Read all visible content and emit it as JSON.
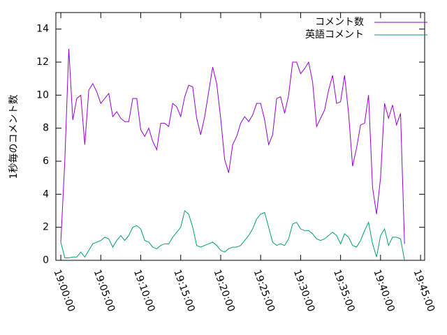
{
  "chart_data": {
    "type": "line",
    "ylabel": "1秒毎のコメント数",
    "xlim": [
      "18:59:23",
      "19:45:31"
    ],
    "xticks": [
      "19:00:00",
      "19:05:00",
      "19:10:00",
      "19:15:00",
      "19:20:00",
      "19:25:00",
      "19:30:00",
      "19:35:00",
      "19:40:00",
      "19:45:00"
    ],
    "ylim": [
      0,
      15
    ],
    "yticks": [
      0,
      2,
      4,
      6,
      8,
      10,
      12,
      14
    ],
    "legend": "top-right",
    "x": [
      "19:00:00",
      "19:00:30",
      "19:01:00",
      "19:01:30",
      "19:02:00",
      "19:02:30",
      "19:03:00",
      "19:03:30",
      "19:04:00",
      "19:04:30",
      "19:05:00",
      "19:05:30",
      "19:06:00",
      "19:06:30",
      "19:07:00",
      "19:07:30",
      "19:08:00",
      "19:08:30",
      "19:09:00",
      "19:09:30",
      "19:10:00",
      "19:10:30",
      "19:11:00",
      "19:11:30",
      "19:12:00",
      "19:12:30",
      "19:13:00",
      "19:13:30",
      "19:14:00",
      "19:14:30",
      "19:15:00",
      "19:15:30",
      "19:16:00",
      "19:16:30",
      "19:17:00",
      "19:17:30",
      "19:18:00",
      "19:18:30",
      "19:19:00",
      "19:19:30",
      "19:20:00",
      "19:20:30",
      "19:21:00",
      "19:21:30",
      "19:22:00",
      "19:22:30",
      "19:23:00",
      "19:23:30",
      "19:24:00",
      "19:24:30",
      "19:25:00",
      "19:25:30",
      "19:26:00",
      "19:26:30",
      "19:27:00",
      "19:27:30",
      "19:28:00",
      "19:28:30",
      "19:29:00",
      "19:29:30",
      "19:30:00",
      "19:30:30",
      "19:31:00",
      "19:31:30",
      "19:32:00",
      "19:32:30",
      "19:33:00",
      "19:33:30",
      "19:34:00",
      "19:34:30",
      "19:35:00",
      "19:35:30",
      "19:36:00",
      "19:36:30",
      "19:37:00",
      "19:37:30",
      "19:38:00",
      "19:38:30",
      "19:39:00",
      "19:39:30",
      "19:40:00",
      "19:40:30",
      "19:41:00",
      "19:41:30",
      "19:42:00",
      "19:42:30",
      "19:43:00"
    ],
    "series": [
      {
        "name": "コメント数",
        "color": "#9400d3",
        "values": [
          1.1,
          6.0,
          12.8,
          8.5,
          9.8,
          10.0,
          7.0,
          10.3,
          10.7,
          10.2,
          9.5,
          9.8,
          10.1,
          8.7,
          9.0,
          8.6,
          8.4,
          8.4,
          9.8,
          9.8,
          7.9,
          7.5,
          8.0,
          7.2,
          6.7,
          8.3,
          8.3,
          8.1,
          9.5,
          9.3,
          8.7,
          9.9,
          10.6,
          10.5,
          8.6,
          7.6,
          8.7,
          10.2,
          11.7,
          10.7,
          8.6,
          6.1,
          5.3,
          7.0,
          7.5,
          8.3,
          8.7,
          8.4,
          8.8,
          9.5,
          9.5,
          8.5,
          7.0,
          7.6,
          9.8,
          9.9,
          8.9,
          10.0,
          12.0,
          12.0,
          11.3,
          11.6,
          12.0,
          10.8,
          8.1,
          8.6,
          9.1,
          10.3,
          11.2,
          9.5,
          9.6,
          11.2,
          8.9,
          5.7,
          6.8,
          8.2,
          8.3,
          10.0,
          4.4,
          2.8,
          5.0,
          9.5,
          8.6,
          9.4,
          8.2,
          8.9,
          1.0
        ]
      },
      {
        "name": "英語コメント",
        "color": "#009e73",
        "values": [
          1.1,
          0.15,
          0.15,
          0.2,
          0.2,
          0.5,
          0.2,
          0.6,
          1.0,
          1.1,
          1.2,
          1.4,
          1.3,
          0.8,
          1.2,
          1.5,
          1.2,
          1.5,
          2.0,
          2.1,
          1.9,
          1.2,
          1.1,
          0.8,
          0.7,
          0.9,
          1.0,
          1.0,
          1.4,
          1.7,
          2.0,
          3.0,
          2.8,
          2.0,
          0.9,
          0.8,
          0.9,
          1.0,
          1.1,
          0.9,
          0.6,
          0.5,
          0.7,
          0.8,
          0.8,
          0.9,
          1.2,
          1.5,
          1.9,
          2.5,
          2.8,
          2.9,
          2.0,
          1.1,
          0.9,
          1.0,
          0.9,
          1.3,
          2.2,
          2.3,
          1.9,
          1.8,
          1.8,
          1.6,
          1.3,
          1.2,
          1.3,
          1.5,
          1.7,
          1.5,
          1.0,
          1.6,
          1.4,
          0.9,
          0.8,
          1.2,
          1.8,
          2.3,
          1.0,
          0.2,
          1.5,
          1.9,
          0.9,
          1.4,
          1.4,
          1.3,
          0.0
        ]
      }
    ]
  }
}
